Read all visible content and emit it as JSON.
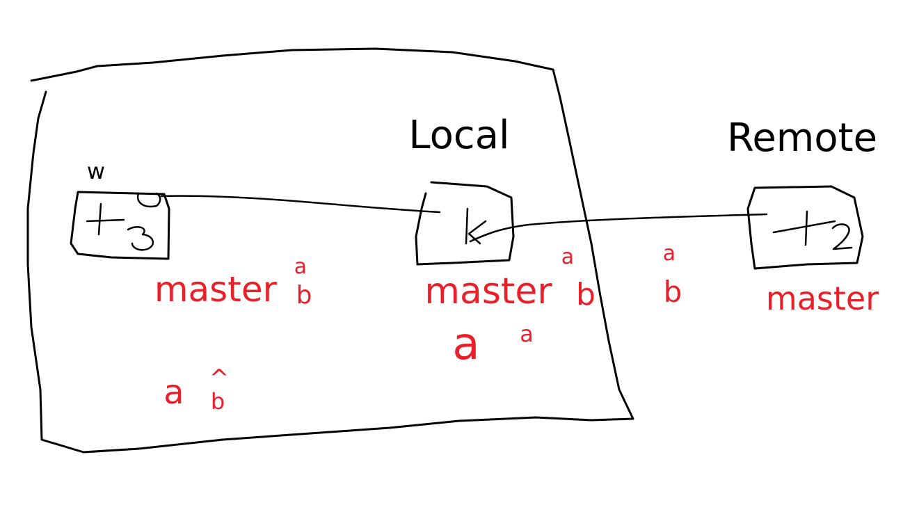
{
  "colors": {
    "background": "#ffffff",
    "black_ink": "#000000",
    "red_ink": "#e8202a"
  },
  "labels": {
    "local": "Local",
    "remote": "Remote",
    "w": "w"
  },
  "commits": {
    "t3": {
      "label": "t3"
    },
    "k": {
      "label": "k"
    },
    "t2": {
      "label": "t2"
    }
  },
  "annotations": {
    "local_master_left": "master",
    "local_master_middle": "master",
    "remote_master": "master",
    "super_a_left": "a",
    "sub_b_left": "b",
    "super_a_middle": "a",
    "sub_b_middle": "b",
    "stack_a_between": "a",
    "stack_b_between": "b",
    "big_a_middle": "a",
    "small_a_middle": "a",
    "a_bottom_left": "a",
    "caret_bottom_left": "^",
    "b_bottom_left": "b"
  }
}
